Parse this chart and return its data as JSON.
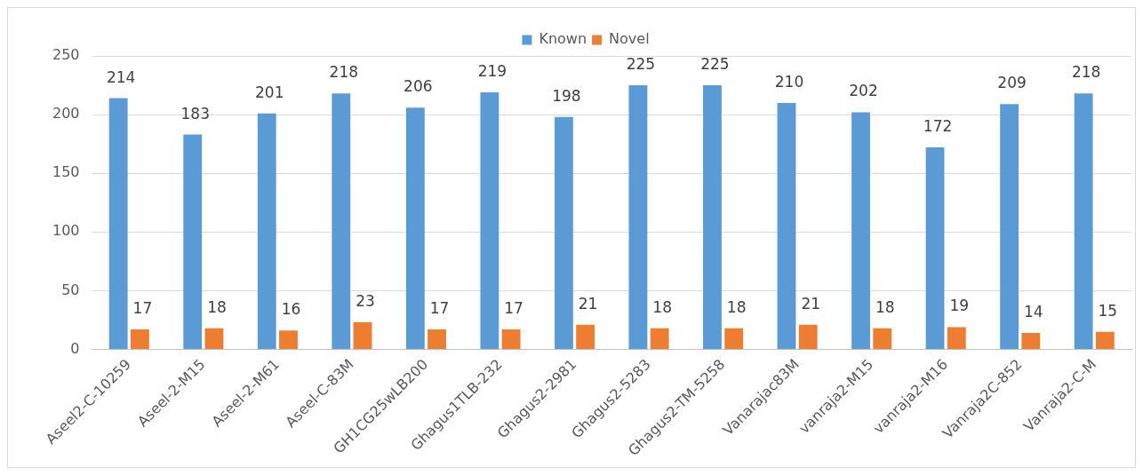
{
  "chart_data": {
    "type": "bar",
    "categories": [
      "Aseel2-C-10259",
      "Aseel-2-M15",
      "Aseel-2-M61",
      "Aseel-C-83M",
      "GH1CG25wLB200",
      "Ghagus1TLB-232",
      "Ghagus2-2981",
      "Ghagus2-5283",
      "Ghagus2-TM-5258",
      "Vanarajac83M",
      "vanraja2-M15",
      "vanraja2-M16",
      "Vanraja2C-852",
      "Vanraja2-C-M"
    ],
    "series": [
      {
        "name": "Known",
        "color": "#5b9bd5",
        "values": [
          214,
          183,
          201,
          218,
          206,
          219,
          198,
          225,
          225,
          210,
          202,
          172,
          209,
          218
        ]
      },
      {
        "name": "Novel",
        "color": "#ed7d31",
        "values": [
          17,
          18,
          16,
          23,
          17,
          17,
          21,
          18,
          18,
          21,
          18,
          19,
          14,
          15
        ]
      }
    ],
    "ylim": [
      0,
      250
    ],
    "yticks": [
      0,
      50,
      100,
      150,
      200,
      250
    ],
    "grid": "y",
    "legend": "top",
    "data_labels": true
  }
}
